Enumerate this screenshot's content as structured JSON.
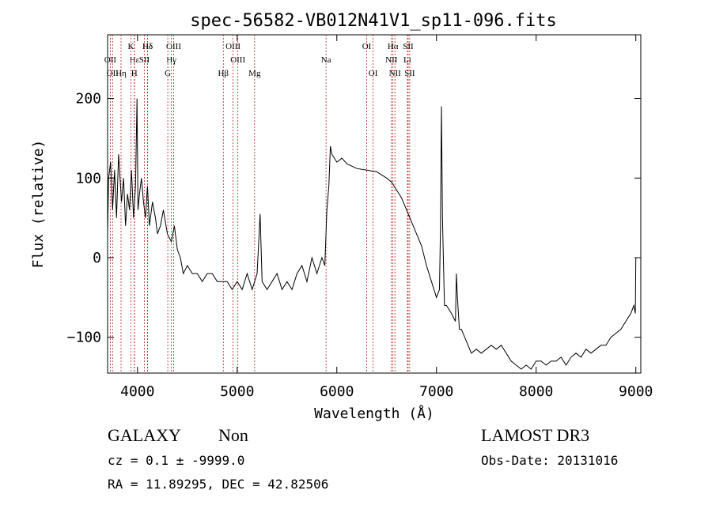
{
  "chart_data": {
    "type": "line",
    "title": "spec-56582-VB012N41V1_sp11-096.fits",
    "xlabel": "Wavelength (Å)",
    "ylabel": "Flux (relative)",
    "xlim": [
      3700,
      9050
    ],
    "ylim": [
      -145,
      280
    ],
    "xticks": [
      4000,
      5000,
      6000,
      7000,
      8000,
      9000
    ],
    "yticks": [
      -100,
      0,
      100,
      200
    ],
    "series": [
      {
        "name": "flux",
        "color": "#000000",
        "points": [
          [
            3700,
            30
          ],
          [
            3710,
            100
          ],
          [
            3730,
            120
          ],
          [
            3750,
            60
          ],
          [
            3770,
            110
          ],
          [
            3790,
            50
          ],
          [
            3810,
            130
          ],
          [
            3840,
            70
          ],
          [
            3860,
            100
          ],
          [
            3880,
            40
          ],
          [
            3900,
            80
          ],
          [
            3920,
            60
          ],
          [
            3940,
            110
          ],
          [
            3960,
            50
          ],
          [
            3980,
            90
          ],
          [
            3995,
            200
          ],
          [
            4005,
            60
          ],
          [
            4020,
            80
          ],
          [
            4040,
            100
          ],
          [
            4060,
            70
          ],
          [
            4080,
            50
          ],
          [
            4100,
            90
          ],
          [
            4120,
            40
          ],
          [
            4150,
            70
          ],
          [
            4180,
            50
          ],
          [
            4200,
            30
          ],
          [
            4230,
            40
          ],
          [
            4260,
            60
          ],
          [
            4300,
            30
          ],
          [
            4340,
            20
          ],
          [
            4370,
            40
          ],
          [
            4400,
            10
          ],
          [
            4430,
            0
          ],
          [
            4460,
            -20
          ],
          [
            4500,
            -10
          ],
          [
            4550,
            -20
          ],
          [
            4600,
            -20
          ],
          [
            4650,
            -30
          ],
          [
            4700,
            -20
          ],
          [
            4750,
            -20
          ],
          [
            4800,
            -30
          ],
          [
            4850,
            -30
          ],
          [
            4900,
            -30
          ],
          [
            4950,
            -40
          ],
          [
            5000,
            -30
          ],
          [
            5050,
            -40
          ],
          [
            5100,
            -20
          ],
          [
            5150,
            -40
          ],
          [
            5200,
            -20
          ],
          [
            5230,
            55
          ],
          [
            5250,
            -30
          ],
          [
            5300,
            -40
          ],
          [
            5350,
            -30
          ],
          [
            5400,
            -20
          ],
          [
            5450,
            -40
          ],
          [
            5500,
            -30
          ],
          [
            5550,
            -40
          ],
          [
            5600,
            -20
          ],
          [
            5650,
            -10
          ],
          [
            5700,
            -30
          ],
          [
            5750,
            0
          ],
          [
            5800,
            -20
          ],
          [
            5850,
            0
          ],
          [
            5880,
            -10
          ],
          [
            5900,
            60
          ],
          [
            5920,
            90
          ],
          [
            5935,
            140
          ],
          [
            5950,
            130
          ],
          [
            6000,
            120
          ],
          [
            6050,
            125
          ],
          [
            6100,
            118
          ],
          [
            6150,
            115
          ],
          [
            6200,
            112
          ],
          [
            6300,
            110
          ],
          [
            6400,
            108
          ],
          [
            6500,
            100
          ],
          [
            6550,
            95
          ],
          [
            6600,
            85
          ],
          [
            6650,
            75
          ],
          [
            6700,
            60
          ],
          [
            6750,
            45
          ],
          [
            6800,
            30
          ],
          [
            6850,
            15
          ],
          [
            6900,
            -10
          ],
          [
            6950,
            -30
          ],
          [
            7000,
            -50
          ],
          [
            7030,
            -40
          ],
          [
            7040,
            40
          ],
          [
            7050,
            190
          ],
          [
            7060,
            50
          ],
          [
            7080,
            -60
          ],
          [
            7100,
            -60
          ],
          [
            7150,
            -70
          ],
          [
            7190,
            -80
          ],
          [
            7200,
            -20
          ],
          [
            7210,
            -50
          ],
          [
            7230,
            -90
          ],
          [
            7250,
            -90
          ],
          [
            7300,
            -105
          ],
          [
            7350,
            -120
          ],
          [
            7400,
            -115
          ],
          [
            7450,
            -120
          ],
          [
            7500,
            -115
          ],
          [
            7550,
            -110
          ],
          [
            7600,
            -115
          ],
          [
            7650,
            -110
          ],
          [
            7700,
            -120
          ],
          [
            7750,
            -130
          ],
          [
            7800,
            -135
          ],
          [
            7850,
            -140
          ],
          [
            7900,
            -135
          ],
          [
            7950,
            -140
          ],
          [
            8000,
            -130
          ],
          [
            8050,
            -130
          ],
          [
            8100,
            -135
          ],
          [
            8150,
            -130
          ],
          [
            8200,
            -130
          ],
          [
            8250,
            -125
          ],
          [
            8300,
            -135
          ],
          [
            8350,
            -125
          ],
          [
            8400,
            -120
          ],
          [
            8450,
            -125
          ],
          [
            8500,
            -115
          ],
          [
            8550,
            -120
          ],
          [
            8600,
            -115
          ],
          [
            8650,
            -110
          ],
          [
            8700,
            -110
          ],
          [
            8750,
            -100
          ],
          [
            8800,
            -95
          ],
          [
            8850,
            -90
          ],
          [
            8900,
            -80
          ],
          [
            8950,
            -70
          ],
          [
            8980,
            -60
          ],
          [
            8995,
            -70
          ],
          [
            9000,
            0
          ]
        ]
      }
    ],
    "line_markers": [
      {
        "wavelength": 3727,
        "label": "OII",
        "row": 1
      },
      {
        "wavelength": 3750,
        "label": "OII",
        "row": 2
      },
      {
        "wavelength": 4101,
        "label": "Hδ",
        "row": 0
      },
      {
        "wavelength": 3970,
        "label": "Hε",
        "row": 1
      },
      {
        "wavelength": 3835,
        "label": "Hη",
        "row": 2
      },
      {
        "wavelength": 3934,
        "label": "K",
        "row": 0
      },
      {
        "wavelength": 3968,
        "label": "H",
        "row": 2
      },
      {
        "wavelength": 4102,
        "label": "Hδ",
        "row": 0
      },
      {
        "wavelength": 4069,
        "label": "SII",
        "row": 1
      },
      {
        "wavelength": 4363,
        "label": "OIII",
        "row": 0
      },
      {
        "wavelength": 4340,
        "label": "Hγ",
        "row": 1
      },
      {
        "wavelength": 4304,
        "label": "G",
        "row": 2
      },
      {
        "wavelength": 4959,
        "label": "OIII",
        "row": 0
      },
      {
        "wavelength": 5007,
        "label": "OIII",
        "row": 1
      },
      {
        "wavelength": 4861,
        "label": "Hβ",
        "row": 2
      },
      {
        "wavelength": 5175,
        "label": "Mg",
        "row": 2
      },
      {
        "wavelength": 5892,
        "label": "Na",
        "row": 1
      },
      {
        "wavelength": 6300,
        "label": "OI",
        "row": 0
      },
      {
        "wavelength": 6364,
        "label": "OI",
        "row": 2
      },
      {
        "wavelength": 6563,
        "label": "Hα",
        "row": 0
      },
      {
        "wavelength": 6548,
        "label": "NII",
        "row": 1
      },
      {
        "wavelength": 6583,
        "label": "NII",
        "row": 2
      },
      {
        "wavelength": 6716,
        "label": "SII",
        "row": 0
      },
      {
        "wavelength": 6708,
        "label": "Li",
        "row": 1
      },
      {
        "wavelength": 6731,
        "label": "SII",
        "row": 2
      }
    ]
  },
  "info": {
    "class": "GALAXY",
    "subclass": "Non",
    "survey": "LAMOST DR3",
    "cz": "cz = 0.1 ± -9999.0",
    "obs_date": "Obs-Date: 20131016",
    "coords": "RA =  11.89295, DEC =  42.82506"
  }
}
